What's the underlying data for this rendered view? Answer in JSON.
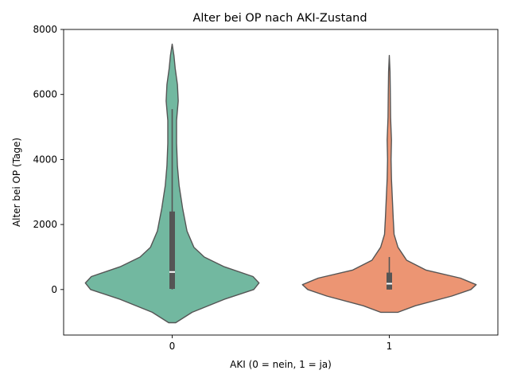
{
  "chart_data": {
    "type": "violin",
    "title": "Alter bei OP nach AKI-Zustand",
    "xlabel": "AKI (0 = nein, 1 = ja)",
    "ylabel": "Alter bei OP (Tage)",
    "categories": [
      "0",
      "1"
    ],
    "ylim": [
      -1400,
      8000
    ],
    "yticks": [
      0,
      2000,
      4000,
      6000,
      8000
    ],
    "grid": false,
    "colors": {
      "0": "#72b8a0",
      "1": "#ec9573",
      "outline": "#555555",
      "box": "#555555",
      "median": "#ffffff"
    },
    "violins": [
      {
        "category": "0",
        "density_profile": [
          {
            "y": -1020,
            "w": 0.04
          },
          {
            "y": -700,
            "w": 0.23
          },
          {
            "y": -300,
            "w": 0.6
          },
          {
            "y": 0,
            "w": 0.94
          },
          {
            "y": 200,
            "w": 1.0
          },
          {
            "y": 400,
            "w": 0.93
          },
          {
            "y": 700,
            "w": 0.6
          },
          {
            "y": 1000,
            "w": 0.37
          },
          {
            "y": 1300,
            "w": 0.25
          },
          {
            "y": 1800,
            "w": 0.17
          },
          {
            "y": 2500,
            "w": 0.12
          },
          {
            "y": 3200,
            "w": 0.08
          },
          {
            "y": 3800,
            "w": 0.06
          },
          {
            "y": 4500,
            "w": 0.05
          },
          {
            "y": 5200,
            "w": 0.05
          },
          {
            "y": 5800,
            "w": 0.07
          },
          {
            "y": 6300,
            "w": 0.06
          },
          {
            "y": 6800,
            "w": 0.035
          },
          {
            "y": 7200,
            "w": 0.02
          },
          {
            "y": 7550,
            "w": 0.0
          }
        ],
        "box": {
          "q1": 20,
          "median": 540,
          "q3": 2400,
          "whisker_low": 0,
          "whisker_high": 5550
        }
      },
      {
        "category": "1",
        "density_profile": [
          {
            "y": -700,
            "w": 0.1
          },
          {
            "y": -500,
            "w": 0.3
          },
          {
            "y": -200,
            "w": 0.72
          },
          {
            "y": 0,
            "w": 0.94
          },
          {
            "y": 150,
            "w": 1.0
          },
          {
            "y": 350,
            "w": 0.82
          },
          {
            "y": 600,
            "w": 0.42
          },
          {
            "y": 900,
            "w": 0.2
          },
          {
            "y": 1300,
            "w": 0.1
          },
          {
            "y": 1700,
            "w": 0.055
          },
          {
            "y": 2200,
            "w": 0.045
          },
          {
            "y": 2800,
            "w": 0.035
          },
          {
            "y": 3400,
            "w": 0.025
          },
          {
            "y": 4000,
            "w": 0.02
          },
          {
            "y": 4600,
            "w": 0.025
          },
          {
            "y": 5300,
            "w": 0.015
          },
          {
            "y": 6000,
            "w": 0.012
          },
          {
            "y": 6700,
            "w": 0.008
          },
          {
            "y": 7200,
            "w": 0.0
          }
        ],
        "box": {
          "q1": 0,
          "median": 180,
          "q3": 520,
          "whisker_low": 0,
          "whisker_high": 1000
        }
      }
    ]
  }
}
